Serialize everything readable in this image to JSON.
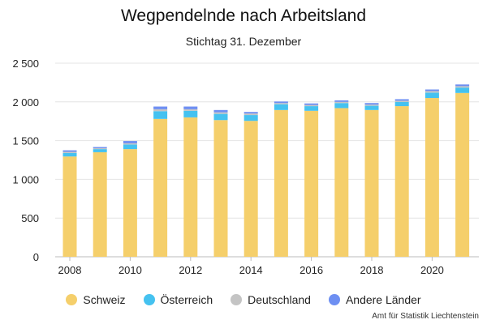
{
  "title": "Wegpendelnde nach Arbeitsland",
  "subtitle": "Stichtag 31. Dezember",
  "source": "Amt für Statistik Liechtenstein",
  "chart_data": {
    "type": "bar",
    "stacked": true,
    "title": "Wegpendelnde nach Arbeitsland",
    "subtitle": "Stichtag 31. Dezember",
    "categories": [
      "2008",
      "2009",
      "2010",
      "2011",
      "2012",
      "2013",
      "2014",
      "2015",
      "2016",
      "2017",
      "2018",
      "2019",
      "2020",
      "2021"
    ],
    "x_tick_labels": [
      "2008",
      "2010",
      "2012",
      "2014",
      "2016",
      "2018",
      "2020"
    ],
    "ylim": [
      0,
      2500
    ],
    "y_ticks": [
      0,
      500,
      1000,
      1500,
      2000,
      2500
    ],
    "y_tick_labels": [
      "0",
      "500",
      "1 000",
      "1 500",
      "2 000",
      "2 500"
    ],
    "grid": true,
    "legend_position": "bottom",
    "series": [
      {
        "name": "Schweiz",
        "color": "#f5cf6b",
        "values": [
          1295,
          1350,
          1390,
          1780,
          1800,
          1765,
          1755,
          1895,
          1885,
          1920,
          1895,
          1945,
          2050,
          2115
        ]
      },
      {
        "name": "Österreich",
        "color": "#45c2f0",
        "values": [
          45,
          40,
          60,
          100,
          85,
          80,
          75,
          75,
          60,
          65,
          55,
          55,
          70,
          70
        ]
      },
      {
        "name": "Deutschland",
        "color": "#c4c4c4",
        "values": [
          15,
          12,
          15,
          25,
          20,
          20,
          20,
          15,
          15,
          15,
          15,
          15,
          20,
          18
        ]
      },
      {
        "name": "Andere Länder",
        "color": "#6e8ff2",
        "values": [
          20,
          15,
          30,
          35,
          35,
          30,
          20,
          20,
          20,
          20,
          20,
          20,
          20,
          22
        ]
      }
    ]
  }
}
